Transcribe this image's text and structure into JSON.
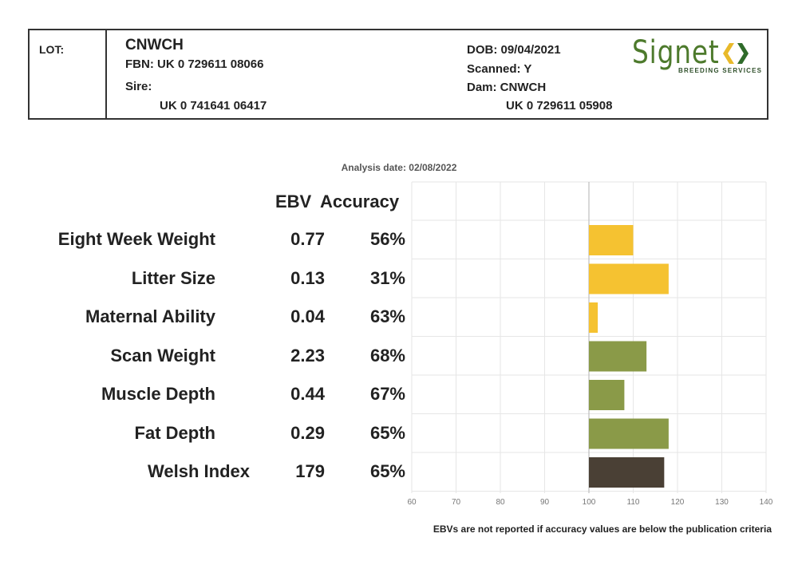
{
  "header": {
    "lot_label": "LOT:",
    "animal_id": "CNWCH",
    "fbn": "FBN: UK 0 729611 08066",
    "sire_label": "Sire:",
    "sire_id": "UK 0 741641 06417",
    "dob": "DOB: 09/04/2021",
    "scanned": "Scanned: Y",
    "dam": "Dam: CNWCH",
    "dam_id": "UK 0 729611 05908"
  },
  "logo": {
    "word": "Signet",
    "subtitle": "BREEDING SERVICES",
    "colors": {
      "text": "#4d7a2c",
      "chevron_left": "#e8b92a",
      "chevron_right": "#2f6b2a"
    }
  },
  "analysis_date": "Analysis date: 02/08/2022",
  "columns": {
    "ebv": "EBV",
    "accuracy": "Accuracy"
  },
  "traits": [
    {
      "name": "Eight Week Weight",
      "ebv": "0.77",
      "accuracy": "56%"
    },
    {
      "name": "Litter Size",
      "ebv": "0.13",
      "accuracy": "31%"
    },
    {
      "name": "Maternal Ability",
      "ebv": "0.04",
      "accuracy": "63%"
    },
    {
      "name": "Scan Weight",
      "ebv": "2.23",
      "accuracy": "68%"
    },
    {
      "name": "Muscle Depth",
      "ebv": "0.44",
      "accuracy": "67%"
    },
    {
      "name": "Fat Depth",
      "ebv": "0.29",
      "accuracy": "65%"
    },
    {
      "name": "Welsh Index",
      "ebv": "179",
      "accuracy": "65%"
    }
  ],
  "footnote": "EBVs are not reported if accuracy values are below the publication criteria",
  "chart_data": {
    "type": "bar",
    "orientation": "horizontal",
    "categories": [
      "Eight Week Weight",
      "Litter Size",
      "Maternal Ability",
      "Scan Weight",
      "Muscle Depth",
      "Fat Depth",
      "Welsh Index"
    ],
    "values": [
      110,
      118,
      102,
      113,
      108,
      118,
      117
    ],
    "baseline": 100,
    "xlim": [
      60,
      140
    ],
    "xticks": [
      60,
      70,
      80,
      90,
      100,
      110,
      120,
      130,
      140
    ],
    "bar_colors": [
      "#f5c231",
      "#f5c231",
      "#f5c231",
      "#8a9a48",
      "#8a9a48",
      "#8a9a48",
      "#4a4035"
    ],
    "grid": true,
    "title": "",
    "xlabel": "",
    "ylabel": ""
  }
}
